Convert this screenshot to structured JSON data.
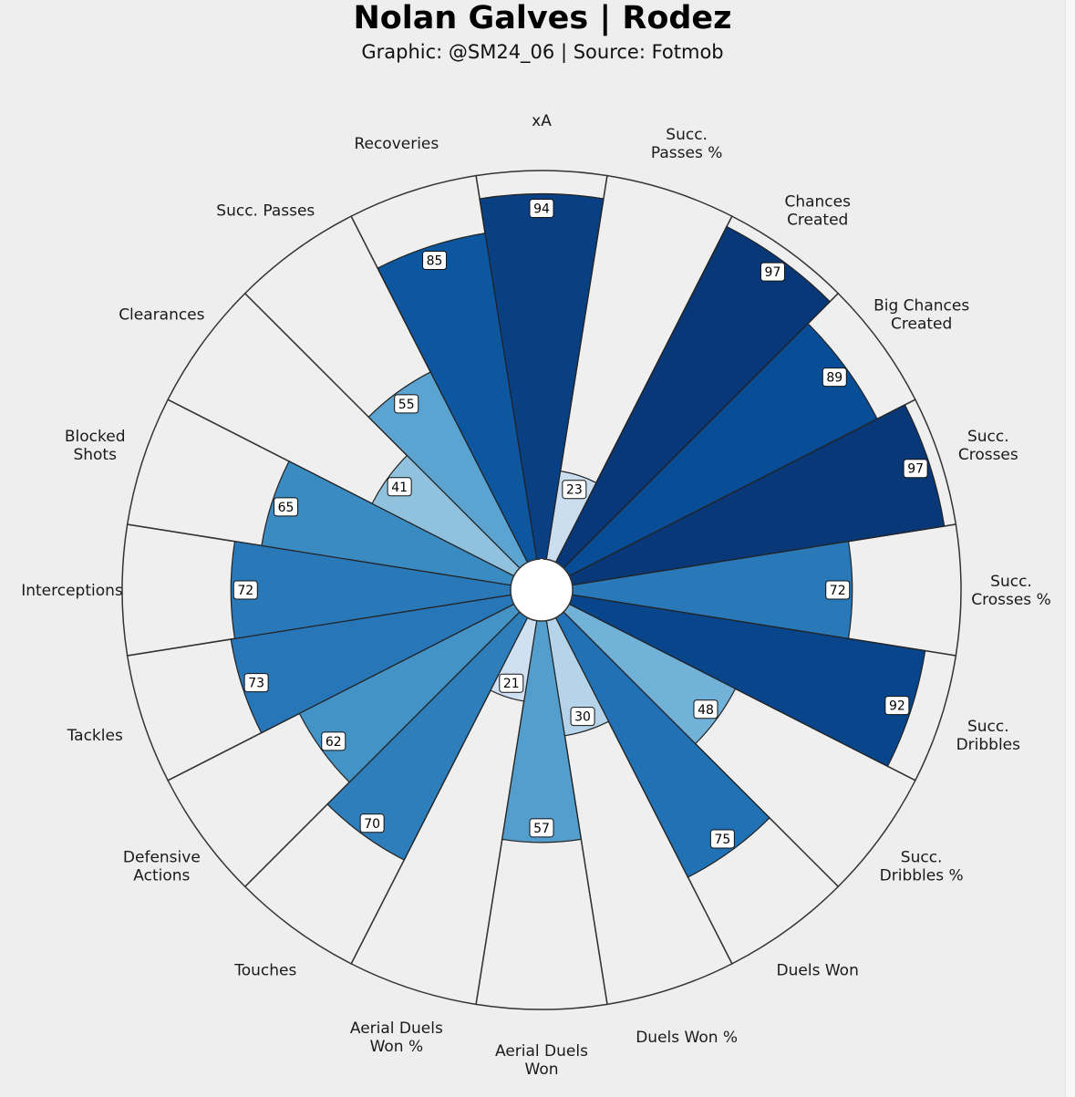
{
  "header": {
    "title": "Nolan Galves | Rodez",
    "subtitle": "Graphic: @SM24_06 | Source: Fotmob"
  },
  "colors": {
    "background": "#eeeeee",
    "ring_stroke": "#333333",
    "palette": "Blues"
  },
  "chart_data": {
    "type": "polar-bar",
    "title": "Nolan Galves | Rodez",
    "subtitle": "Graphic: @SM24_06 | Source: Fotmob",
    "rlim": [
      0,
      100
    ],
    "categories": [
      "xA",
      "Succ. Passes %",
      "Chances Created",
      "Big Chances Created",
      "Succ. Crosses",
      "Succ. Crosses %",
      "Succ. Dribbles",
      "Succ. Dribbles %",
      "Duels Won",
      "Duels Won %",
      "Aerial Duels Won",
      "Aerial Duels Won %",
      "Touches",
      "Defensive Actions",
      "Tackles",
      "Interceptions",
      "Blocked Shots",
      "Clearances",
      "Succ. Passes",
      "Recoveries"
    ],
    "category_lines": [
      [
        "xA"
      ],
      [
        "Succ.",
        "Passes %"
      ],
      [
        "Chances",
        "Created"
      ],
      [
        "Big Chances",
        "Created"
      ],
      [
        "Succ.",
        "Crosses"
      ],
      [
        "Succ.",
        "Crosses %"
      ],
      [
        "Succ.",
        "Dribbles"
      ],
      [
        "Succ.",
        "Dribbles %"
      ],
      [
        "Duels Won"
      ],
      [
        "Duels Won %"
      ],
      [
        "Aerial Duels",
        "Won"
      ],
      [
        "Aerial Duels",
        "Won %"
      ],
      [
        "Touches"
      ],
      [
        "Defensive",
        "Actions"
      ],
      [
        "Tackles"
      ],
      [
        "Interceptions"
      ],
      [
        "Blocked",
        "Shots"
      ],
      [
        "Clearances"
      ],
      [
        "Succ. Passes"
      ],
      [
        "Recoveries"
      ]
    ],
    "values": [
      94,
      23,
      97,
      89,
      97,
      72,
      92,
      48,
      75,
      30,
      57,
      21,
      70,
      62,
      73,
      72,
      65,
      41,
      55,
      85
    ],
    "value_labels": [
      "94",
      "23",
      "97",
      "89",
      "97",
      "72",
      "92",
      "48",
      "75",
      "30",
      "57",
      "21",
      "70",
      "62",
      "73",
      "72",
      "65",
      "41",
      "55",
      "85"
    ]
  }
}
